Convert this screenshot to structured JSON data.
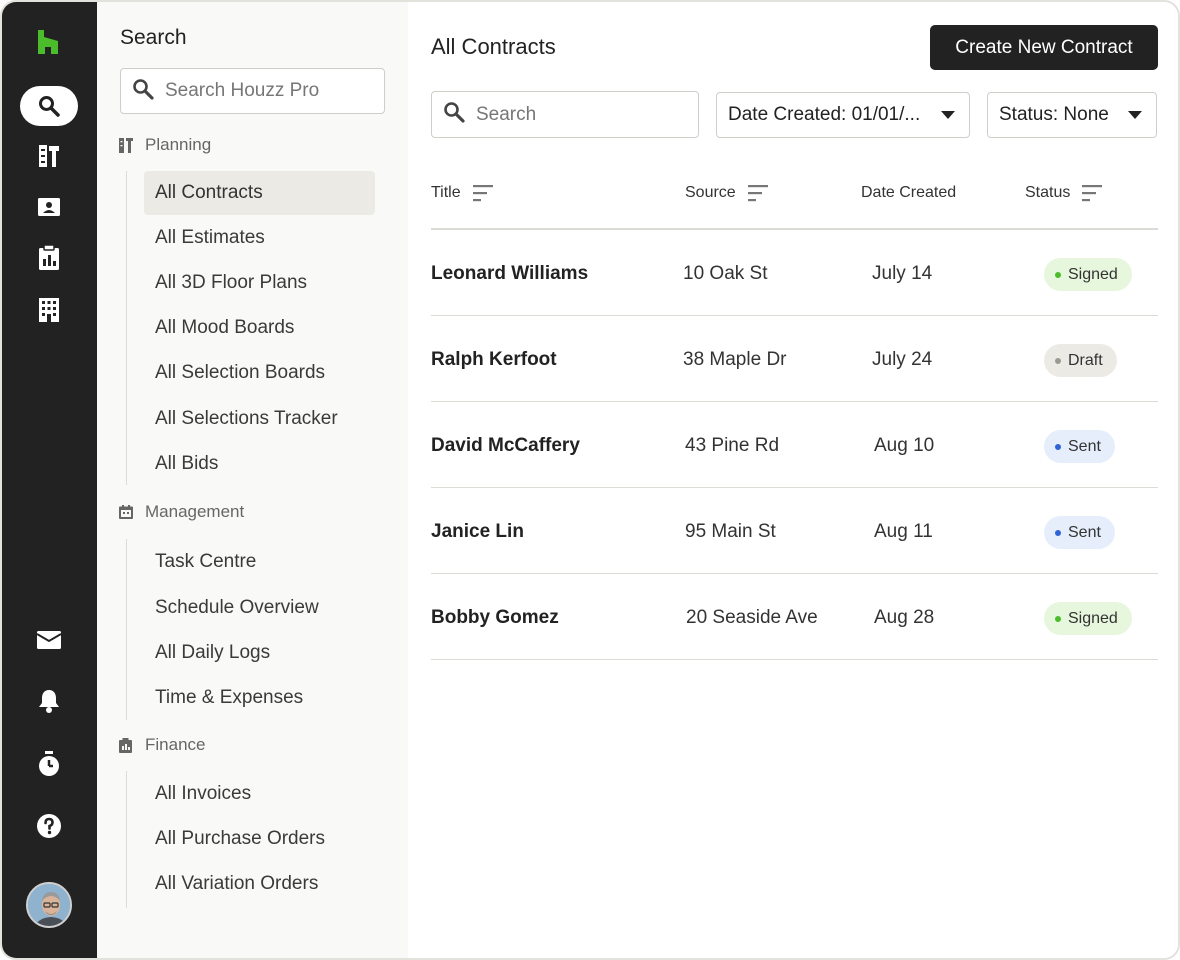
{
  "colors": {
    "brand_green": "#4bbc2b",
    "rail_bg": "#222222",
    "signed_bg": "#e6f7de",
    "signed_dot": "#4bbc2b",
    "draft_bg": "#ebeae5",
    "draft_dot": "#9a9a92",
    "sent_bg": "#e6eefb",
    "sent_dot": "#2f63d6"
  },
  "rail": {
    "items": [
      {
        "icon": "search-icon",
        "active": true
      },
      {
        "icon": "tools-icon",
        "active": false
      },
      {
        "icon": "contact-card-icon",
        "active": false
      },
      {
        "icon": "clipboard-chart-icon",
        "active": false
      },
      {
        "icon": "building-icon",
        "active": false
      },
      {
        "icon": "mail-icon",
        "active": false
      },
      {
        "icon": "bell-icon",
        "active": false
      },
      {
        "icon": "timer-icon",
        "active": false
      },
      {
        "icon": "help-icon",
        "active": false
      }
    ]
  },
  "subnav": {
    "title": "Search",
    "search_placeholder": "Search Houzz Pro",
    "sections": [
      {
        "label": "Planning",
        "items": [
          "All Contracts",
          "All Estimates",
          "All 3D Floor Plans",
          "All Mood Boards",
          "All Selection Boards",
          "All Selections Tracker",
          "All Bids"
        ]
      },
      {
        "label": "Management",
        "items": [
          "Task Centre",
          "Schedule Overview",
          "All Daily Logs",
          "Time & Expenses"
        ]
      },
      {
        "label": "Finance",
        "items": [
          "All Invoices",
          "All Purchase Orders",
          "All Variation Orders"
        ]
      }
    ],
    "active_item": "All Contracts"
  },
  "main": {
    "title": "All Contracts",
    "create_button": "Create New Contract",
    "search_placeholder": "Search",
    "filter_date": "Date Created: 01/01/...",
    "filter_status": "Status: None",
    "columns": [
      "Title",
      "Source",
      "Date Created",
      "Status"
    ],
    "rows": [
      {
        "title": "Leonard Williams",
        "source": "10 Oak St",
        "date": "July 14",
        "status": "Signed"
      },
      {
        "title": "Ralph Kerfoot",
        "source": "38 Maple Dr",
        "date": "July 24",
        "status": "Draft"
      },
      {
        "title": "David McCaffery",
        "source": "43 Pine Rd",
        "date": "Aug 10",
        "status": "Sent"
      },
      {
        "title": "Janice Lin",
        "source": "95 Main St",
        "date": "Aug 11",
        "status": "Sent"
      },
      {
        "title": "Bobby Gomez",
        "source": "20 Seaside Ave",
        "date": "Aug 28",
        "status": "Signed"
      }
    ]
  }
}
